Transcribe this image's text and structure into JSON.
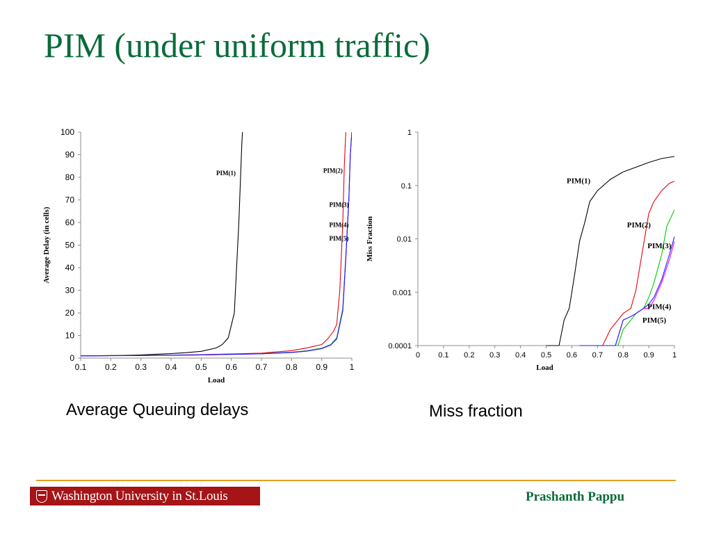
{
  "slide": {
    "title": "PIM (under uniform traffic)",
    "caption_left": "Average Queuing delays",
    "caption_right": "Miss fraction",
    "logo_text": "Washington University in St.Louis",
    "author": "Prashanth Pappu"
  },
  "colors": {
    "title": "#0a6b3a",
    "rule": "#e0a020",
    "logo_bg": "#a51417"
  },
  "chart_data": [
    {
      "type": "line",
      "title": "",
      "xlabel": "Load",
      "ylabel": "Average Delay (in cells)",
      "xlim": [
        0.1,
        1
      ],
      "ylim": [
        0,
        100
      ],
      "xticks": [
        "0.1",
        "0.2",
        "0.3",
        "0.4",
        "0.5",
        "0.6",
        "0.7",
        "0.8",
        "0.9",
        "1"
      ],
      "yticks": [
        "0",
        "10",
        "20",
        "30",
        "40",
        "50",
        "60",
        "70",
        "80",
        "90",
        "100"
      ],
      "grid": false,
      "series": [
        {
          "name": "PIM(1)",
          "color": "#000000",
          "x": [
            0.1,
            0.2,
            0.3,
            0.4,
            0.45,
            0.5,
            0.55,
            0.57,
            0.59,
            0.61,
            0.625,
            0.635,
            0.637
          ],
          "y": [
            1,
            1.1,
            1.4,
            2,
            2.4,
            3,
            4.5,
            6,
            9,
            20,
            60,
            95,
            100
          ]
        },
        {
          "name": "PIM(2)",
          "color": "#e8000b",
          "x": [
            0.1,
            0.3,
            0.5,
            0.7,
            0.8,
            0.85,
            0.9,
            0.92,
            0.94,
            0.95,
            0.96,
            0.97,
            0.975,
            0.98
          ],
          "y": [
            1,
            1.2,
            1.5,
            2.2,
            3.3,
            4.5,
            6,
            8.5,
            12,
            15,
            30,
            60,
            85,
            100
          ]
        },
        {
          "name": "PIM(3)",
          "color": "#00cc00",
          "x": [
            0.1,
            0.3,
            0.5,
            0.7,
            0.8,
            0.85,
            0.9,
            0.93,
            0.95,
            0.97,
            0.98,
            0.99,
            0.995,
            1.0
          ],
          "y": [
            1,
            1.2,
            1.4,
            2,
            2.6,
            3.2,
            4.4,
            6,
            9,
            22,
            45,
            70,
            90,
            100
          ]
        },
        {
          "name": "PIM(4)",
          "color": "#ff00ff",
          "x": [
            0.1,
            0.3,
            0.5,
            0.7,
            0.8,
            0.85,
            0.9,
            0.93,
            0.95,
            0.97,
            0.98,
            0.99,
            0.995,
            1.0
          ],
          "y": [
            1,
            1.15,
            1.4,
            1.9,
            2.5,
            3.1,
            4.2,
            5.8,
            8.5,
            21,
            44,
            70,
            90,
            100
          ]
        },
        {
          "name": "PIM(5)",
          "color": "#1a1aff",
          "x": [
            0.1,
            0.3,
            0.5,
            0.7,
            0.8,
            0.85,
            0.9,
            0.93,
            0.95,
            0.97,
            0.98,
            0.99,
            0.995,
            1.0
          ],
          "y": [
            1,
            1.15,
            1.4,
            1.9,
            2.5,
            3.1,
            4.2,
            5.8,
            8.5,
            21,
            44,
            70,
            90,
            100
          ]
        }
      ],
      "annotations": [
        {
          "text": "PIM(1)",
          "x": 0.55,
          "y": 81
        },
        {
          "text": "PIM(2)",
          "x": 0.905,
          "y": 82
        },
        {
          "text": "PIM(3)",
          "x": 0.925,
          "y": 67
        },
        {
          "text": "PIM(4)",
          "x": 0.925,
          "y": 58
        },
        {
          "text": "PIM(5)",
          "x": 0.925,
          "y": 52
        }
      ]
    },
    {
      "type": "line",
      "title": "",
      "xlabel": "Load",
      "ylabel": "Miss Fraction",
      "xlim": [
        0,
        1
      ],
      "ylim": [
        0.0001,
        1
      ],
      "yscale": "log",
      "xticks": [
        "0",
        "0.1",
        "0.2",
        "0.3",
        "0.4",
        "0.5",
        "0.6",
        "0.7",
        "0.8",
        "0.9",
        "1"
      ],
      "yticks": [
        "0.0001",
        "0.001",
        "0.01",
        "0.1",
        "1"
      ],
      "grid": false,
      "series": [
        {
          "name": "PIM(1)",
          "color": "#000000",
          "x": [
            0.5,
            0.55,
            0.57,
            0.59,
            0.61,
            0.63,
            0.65,
            0.67,
            0.7,
            0.75,
            0.8,
            0.85,
            0.9,
            0.95,
            1.0
          ],
          "y": [
            0.0001,
            0.0001,
            0.0003,
            0.0005,
            0.002,
            0.009,
            0.02,
            0.05,
            0.08,
            0.13,
            0.18,
            0.22,
            0.27,
            0.32,
            0.35
          ]
        },
        {
          "name": "PIM(2)",
          "color": "#e8000b",
          "x": [
            0.63,
            0.72,
            0.75,
            0.8,
            0.83,
            0.85,
            0.88,
            0.9,
            0.92,
            0.95,
            0.98,
            1.0
          ],
          "y": [
            0.0001,
            0.0001,
            0.0002,
            0.0004,
            0.0005,
            0.0011,
            0.008,
            0.03,
            0.05,
            0.08,
            0.11,
            0.12
          ]
        },
        {
          "name": "PIM(3)",
          "color": "#00cc00",
          "x": [
            0.63,
            0.78,
            0.8,
            0.83,
            0.85,
            0.88,
            0.9,
            0.92,
            0.95,
            0.97,
            1.0
          ],
          "y": [
            0.0001,
            0.0001,
            0.0002,
            0.0003,
            0.0004,
            0.0005,
            0.0008,
            0.0015,
            0.005,
            0.017,
            0.035
          ]
        },
        {
          "name": "PIM(4)",
          "color": "#ff00ff",
          "x": [
            0.63,
            0.77,
            0.8,
            0.83,
            0.85,
            0.88,
            0.9,
            0.92,
            0.95,
            0.98,
            1.0
          ],
          "y": [
            0.0001,
            0.0001,
            0.0003,
            0.00035,
            0.0004,
            0.0005,
            0.0005,
            0.0007,
            0.0015,
            0.004,
            0.009
          ]
        },
        {
          "name": "PIM(5)",
          "color": "#1a1aff",
          "x": [
            0.63,
            0.77,
            0.8,
            0.83,
            0.85,
            0.88,
            0.9,
            0.92,
            0.95,
            0.98,
            1.0
          ],
          "y": [
            0.0001,
            0.0001,
            0.0003,
            0.00035,
            0.0004,
            0.0005,
            0.0006,
            0.0008,
            0.0017,
            0.005,
            0.011
          ]
        }
      ],
      "annotations": [
        {
          "text": "PIM(1)",
          "x": 0.58,
          "y": 0.11
        },
        {
          "text": "PIM(2)",
          "x": 0.815,
          "y": 0.0165
        },
        {
          "text": "PIM(3)",
          "x": 0.895,
          "y": 0.0067
        },
        {
          "text": "PIM(4)",
          "x": 0.895,
          "y": 0.00048
        },
        {
          "text": "PIM(5)",
          "x": 0.875,
          "y": 0.00027
        }
      ]
    }
  ]
}
